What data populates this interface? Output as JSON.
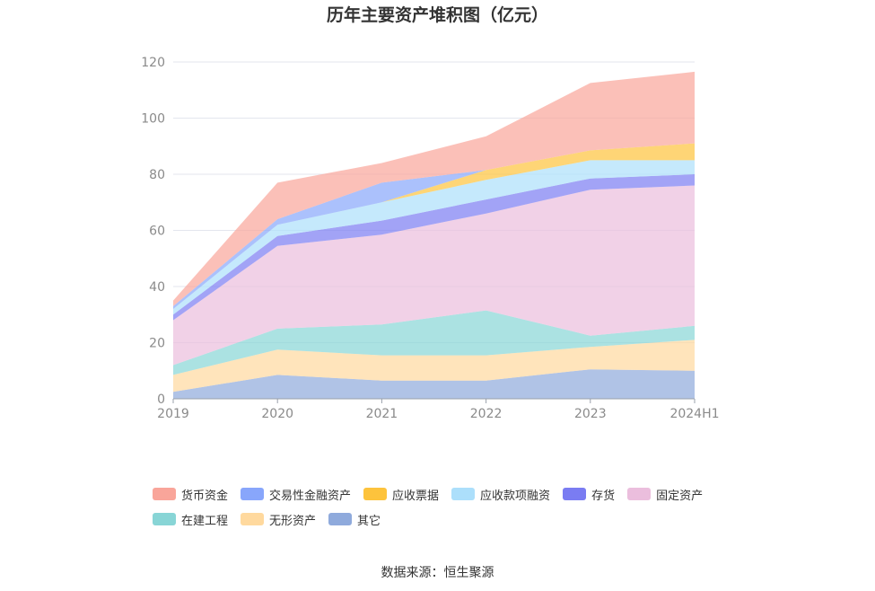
{
  "chart_data": {
    "type": "area",
    "stacked": true,
    "title": "历年主要资产堆积图（亿元）",
    "categories": [
      "2019",
      "2020",
      "2021",
      "2022",
      "2023",
      "2024H1"
    ],
    "ylim": [
      0,
      120
    ],
    "yticks": [
      0,
      20,
      40,
      60,
      80,
      100,
      120
    ],
    "grid": true,
    "legend_position": "bottom",
    "series": [
      {
        "name": "其它",
        "color": "#8faadc",
        "values": [
          2.5,
          8.5,
          6.5,
          6.5,
          10.5,
          10.0
        ]
      },
      {
        "name": "无形资产",
        "color": "#ffd99e",
        "values": [
          6.0,
          9.0,
          9.0,
          9.0,
          8.0,
          11.0
        ]
      },
      {
        "name": "在建工程",
        "color": "#88d5d6",
        "values": [
          3.5,
          7.5,
          11.0,
          16.0,
          4.0,
          5.0
        ]
      },
      {
        "name": "固定资产",
        "color": "#ebbedd",
        "values": [
          16.0,
          29.5,
          32.0,
          34.5,
          52.0,
          50.0
        ]
      },
      {
        "name": "存货",
        "color": "#7a7cf2",
        "values": [
          2.0,
          3.5,
          5.0,
          5.0,
          4.0,
          4.0
        ]
      },
      {
        "name": "应收款项融资",
        "color": "#acdffb",
        "values": [
          2.0,
          4.0,
          6.5,
          7.0,
          6.5,
          5.0
        ]
      },
      {
        "name": "应收票据",
        "color": "#fdc33c",
        "values": [
          0.0,
          0.0,
          0.0,
          3.5,
          3.5,
          6.0
        ]
      },
      {
        "name": "交易性金融资产",
        "color": "#88a6fb",
        "values": [
          1.0,
          2.0,
          7.0,
          0.0,
          0.0,
          0.0
        ]
      },
      {
        "name": "货币资金",
        "color": "#f9a59a",
        "values": [
          2.0,
          13.0,
          7.0,
          12.0,
          24.0,
          25.5
        ]
      }
    ]
  },
  "legend_order": [
    "货币资金",
    "交易性金融资产",
    "应收票据",
    "应收款项融资",
    "存货",
    "固定资产",
    "在建工程",
    "无形资产",
    "其它"
  ],
  "source": "数据来源：恒生聚源"
}
